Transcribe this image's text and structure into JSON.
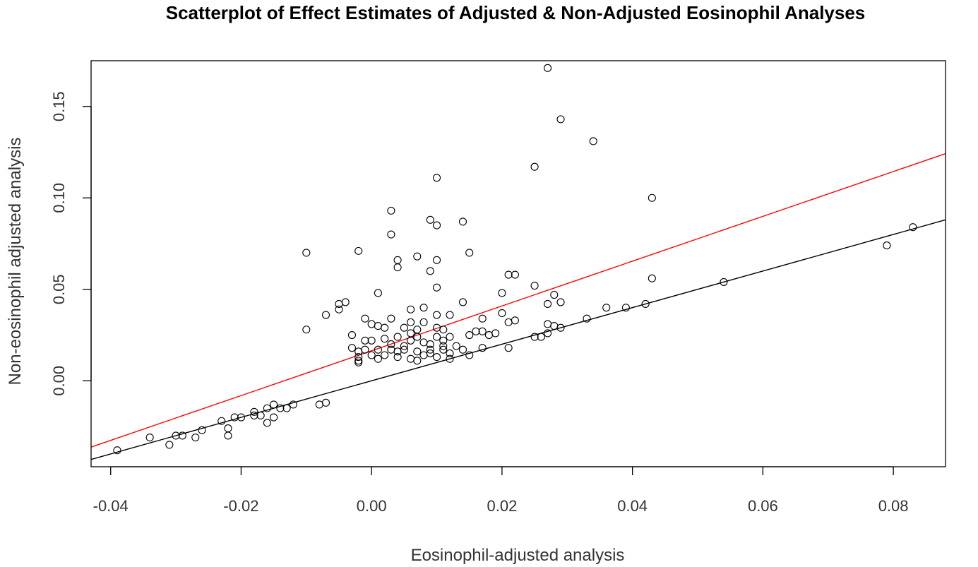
{
  "chart_data": {
    "type": "scatter",
    "title": "Scatterplot of Effect Estimates of Adjusted & Non-Adjusted Eosinophil Analyses",
    "xlabel": "Eosinophil-adjusted analysis",
    "ylabel": "Non-eosinophil adjusted analysis",
    "xlim": [
      -0.043,
      0.088
    ],
    "ylim": [
      -0.047,
      0.175
    ],
    "x_ticks": [
      -0.04,
      -0.02,
      0.0,
      0.02,
      0.04,
      0.06,
      0.08
    ],
    "x_tick_labels": [
      "-0.04",
      "-0.02",
      "0.00",
      "0.02",
      "0.04",
      "0.06",
      "0.08"
    ],
    "y_ticks": [
      0.0,
      0.05,
      0.1,
      0.15
    ],
    "y_tick_labels": [
      "0.00",
      "0.05",
      "0.10",
      "0.15"
    ],
    "grid": false,
    "point_color": "#000000",
    "lines": [
      {
        "name": "identity",
        "intercept": 0.0,
        "slope": 1.0,
        "color": "#000000"
      },
      {
        "name": "fit",
        "intercept": 0.0164,
        "slope": 1.225,
        "color": "#ff0000"
      }
    ],
    "points": [
      [
        0.027,
        0.171
      ],
      [
        0.029,
        0.143
      ],
      [
        0.034,
        0.131
      ],
      [
        0.025,
        0.117
      ],
      [
        0.01,
        0.111
      ],
      [
        0.043,
        0.1
      ],
      [
        0.003,
        0.093
      ],
      [
        0.009,
        0.088
      ],
      [
        0.014,
        0.087
      ],
      [
        0.01,
        0.085
      ],
      [
        0.003,
        0.08
      ],
      [
        -0.01,
        0.07
      ],
      [
        -0.002,
        0.071
      ],
      [
        0.015,
        0.07
      ],
      [
        0.007,
        0.068
      ],
      [
        0.004,
        0.066
      ],
      [
        0.01,
        0.066
      ],
      [
        0.004,
        0.062
      ],
      [
        0.009,
        0.06
      ],
      [
        0.021,
        0.058
      ],
      [
        0.022,
        0.058
      ],
      [
        0.043,
        0.056
      ],
      [
        0.054,
        0.054
      ],
      [
        0.025,
        0.052
      ],
      [
        0.01,
        0.051
      ],
      [
        0.001,
        0.048
      ],
      [
        0.02,
        0.048
      ],
      [
        0.028,
        0.047
      ],
      [
        0.029,
        0.043
      ],
      [
        0.027,
        0.042
      ],
      [
        0.014,
        0.043
      ],
      [
        -0.004,
        0.043
      ],
      [
        -0.005,
        0.042
      ],
      [
        0.042,
        0.042
      ],
      [
        0.036,
        0.04
      ],
      [
        0.039,
        0.04
      ],
      [
        0.008,
        0.04
      ],
      [
        -0.005,
        0.039
      ],
      [
        0.006,
        0.039
      ],
      [
        0.02,
        0.037
      ],
      [
        -0.007,
        0.036
      ],
      [
        0.01,
        0.036
      ],
      [
        0.012,
        0.036
      ],
      [
        0.033,
        0.034
      ],
      [
        0.017,
        0.034
      ],
      [
        0.022,
        0.033
      ],
      [
        -0.001,
        0.034
      ],
      [
        0.003,
        0.034
      ],
      [
        0.006,
        0.032
      ],
      [
        0.008,
        0.032
      ],
      [
        0.021,
        0.032
      ],
      [
        0.027,
        0.031
      ],
      [
        0.028,
        0.03
      ],
      [
        0.029,
        0.029
      ],
      [
        0.001,
        0.03
      ],
      [
        0.0,
        0.031
      ],
      [
        0.002,
        0.029
      ],
      [
        0.005,
        0.029
      ],
      [
        0.007,
        0.028
      ],
      [
        0.01,
        0.029
      ],
      [
        0.011,
        0.028
      ],
      [
        -0.01,
        0.028
      ],
      [
        0.016,
        0.027
      ],
      [
        0.017,
        0.027
      ],
      [
        0.019,
        0.026
      ],
      [
        0.027,
        0.026
      ],
      [
        0.018,
        0.025
      ],
      [
        0.026,
        0.024
      ],
      [
        0.025,
        0.024
      ],
      [
        0.015,
        0.025
      ],
      [
        0.012,
        0.024
      ],
      [
        0.01,
        0.024
      ],
      [
        0.007,
        0.024
      ],
      [
        0.004,
        0.024
      ],
      [
        0.002,
        0.023
      ],
      [
        0.0,
        0.022
      ],
      [
        -0.001,
        0.022
      ],
      [
        -0.003,
        0.025
      ],
      [
        0.006,
        0.022
      ],
      [
        0.008,
        0.021
      ],
      [
        0.009,
        0.02
      ],
      [
        0.011,
        0.019
      ],
      [
        0.013,
        0.019
      ],
      [
        0.017,
        0.018
      ],
      [
        0.021,
        0.018
      ],
      [
        0.014,
        0.017
      ],
      [
        0.011,
        0.017
      ],
      [
        0.009,
        0.017
      ],
      [
        0.005,
        0.017
      ],
      [
        0.003,
        0.017
      ],
      [
        0.001,
        0.017
      ],
      [
        -0.001,
        0.017
      ],
      [
        -0.002,
        0.016
      ],
      [
        -0.003,
        0.018
      ],
      [
        0.004,
        0.016
      ],
      [
        0.007,
        0.016
      ],
      [
        0.009,
        0.015
      ],
      [
        0.012,
        0.015
      ],
      [
        0.015,
        0.014
      ],
      [
        0.002,
        0.014
      ],
      [
        0.0,
        0.014
      ],
      [
        -0.002,
        0.013
      ],
      [
        0.004,
        0.013
      ],
      [
        0.006,
        0.012
      ],
      [
        0.001,
        0.012
      ],
      [
        -0.002,
        0.011
      ],
      [
        0.007,
        0.011
      ],
      [
        0.012,
        0.012
      ],
      [
        -0.002,
        0.01
      ],
      [
        0.011,
        0.022
      ],
      [
        0.005,
        0.019
      ],
      [
        0.008,
        0.014
      ],
      [
        0.003,
        0.02
      ],
      [
        0.01,
        0.013
      ],
      [
        0.006,
        0.026
      ],
      [
        -0.015,
        -0.013
      ],
      [
        -0.016,
        -0.015
      ],
      [
        -0.014,
        -0.015
      ],
      [
        -0.012,
        -0.013
      ],
      [
        -0.013,
        -0.015
      ],
      [
        -0.007,
        -0.012
      ],
      [
        -0.008,
        -0.013
      ],
      [
        -0.018,
        -0.017
      ],
      [
        -0.018,
        -0.019
      ],
      [
        -0.02,
        -0.02
      ],
      [
        -0.021,
        -0.02
      ],
      [
        -0.017,
        -0.019
      ],
      [
        -0.015,
        -0.02
      ],
      [
        -0.016,
        -0.023
      ],
      [
        -0.023,
        -0.022
      ],
      [
        -0.022,
        -0.026
      ],
      [
        -0.022,
        -0.03
      ],
      [
        -0.026,
        -0.027
      ],
      [
        -0.027,
        -0.031
      ],
      [
        -0.029,
        -0.03
      ],
      [
        -0.03,
        -0.03
      ],
      [
        -0.031,
        -0.035
      ],
      [
        -0.034,
        -0.031
      ],
      [
        -0.039,
        -0.038
      ],
      [
        0.079,
        0.074
      ],
      [
        0.083,
        0.084
      ]
    ]
  }
}
